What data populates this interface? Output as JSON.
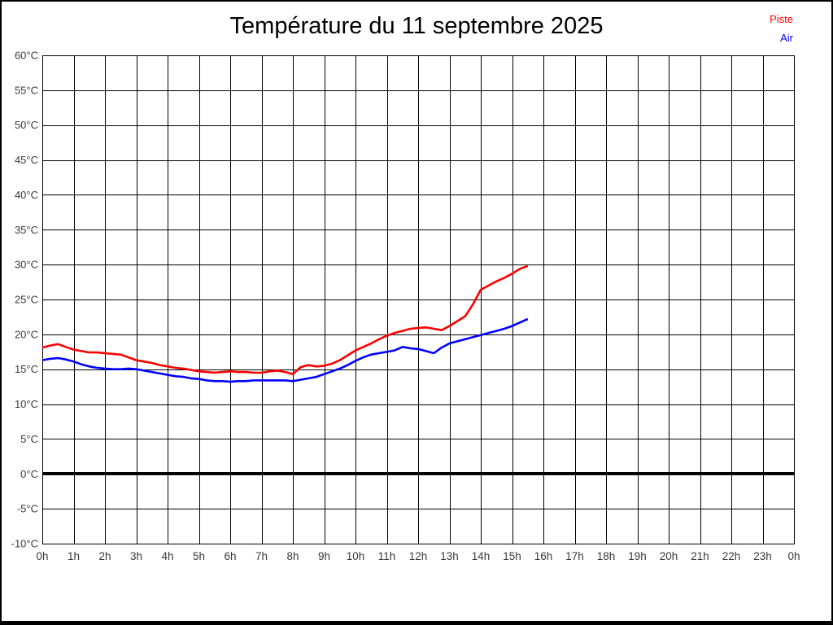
{
  "page": {
    "background": "#ffffff",
    "border_color": "#000000"
  },
  "header": {
    "title": "Température du 11 septembre 2025"
  },
  "legend": {
    "position": "top-right",
    "items": [
      {
        "label": "Piste",
        "color": "#ff0000"
      },
      {
        "label": "Air",
        "color": "#0000ff"
      }
    ]
  },
  "chart_data": {
    "type": "line",
    "title": "Température du 11 septembre 2025",
    "xlabel": "",
    "ylabel": "",
    "grid": true,
    "grid_color": "#000000",
    "legend_position": "top-right",
    "xlim_hours": [
      0,
      24
    ],
    "ylim": [
      -10,
      60
    ],
    "y_tick_step": 5,
    "zero_line_value": 0,
    "zero_line_thickness": 4,
    "y_ticks": [
      60,
      55,
      50,
      45,
      40,
      35,
      30,
      25,
      20,
      15,
      10,
      5,
      0,
      -5,
      -10
    ],
    "y_tick_labels": [
      "60°C",
      "55°C",
      "50°C",
      "45°C",
      "40°C",
      "35°C",
      "30°C",
      "25°C",
      "20°C",
      "15°C",
      "10°C",
      "5°C",
      "0°C",
      "-5°C",
      "-10°C"
    ],
    "x_ticks_hours": [
      0,
      1,
      2,
      3,
      4,
      5,
      6,
      7,
      8,
      9,
      10,
      11,
      12,
      13,
      14,
      15,
      16,
      17,
      18,
      19,
      20,
      21,
      22,
      23,
      24
    ],
    "x_tick_labels": [
      "0h",
      "1h",
      "2h",
      "3h",
      "4h",
      "5h",
      "6h",
      "7h",
      "8h",
      "9h",
      "10h",
      "11h",
      "12h",
      "13h",
      "14h",
      "15h",
      "16h",
      "17h",
      "18h",
      "19h",
      "20h",
      "21h",
      "22h",
      "23h",
      "0h"
    ],
    "x_hours": [
      0,
      0.25,
      0.5,
      0.75,
      1,
      1.25,
      1.5,
      1.75,
      2,
      2.25,
      2.5,
      2.75,
      3,
      3.25,
      3.5,
      3.75,
      4,
      4.25,
      4.5,
      4.75,
      5,
      5.25,
      5.5,
      5.75,
      6,
      6.25,
      6.5,
      6.75,
      7,
      7.25,
      7.5,
      7.75,
      8,
      8.25,
      8.5,
      8.75,
      9,
      9.25,
      9.5,
      9.75,
      10,
      10.25,
      10.5,
      10.75,
      11,
      11.25,
      11.5,
      11.75,
      12,
      12.25,
      12.5,
      12.75,
      13,
      13.25,
      13.5,
      13.75,
      14,
      14.25,
      14.5,
      14.75,
      15,
      15.25,
      15.5
    ],
    "series": [
      {
        "name": "Piste",
        "color": "#ff0000",
        "values": [
          18.1,
          18.4,
          18.6,
          18.2,
          17.8,
          17.6,
          17.4,
          17.4,
          17.3,
          17.2,
          17.1,
          16.7,
          16.3,
          16.1,
          15.9,
          15.6,
          15.4,
          15.2,
          15.1,
          14.9,
          14.7,
          14.6,
          14.5,
          14.6,
          14.7,
          14.6,
          14.6,
          14.5,
          14.5,
          14.7,
          14.8,
          14.6,
          14.3,
          15.3,
          15.6,
          15.4,
          15.5,
          15.8,
          16.3,
          17.0,
          17.7,
          18.2,
          18.7,
          19.3,
          19.8,
          20.2,
          20.5,
          20.8,
          20.9,
          21.0,
          20.8,
          20.6,
          21.2,
          21.9,
          22.6,
          24.3,
          26.4,
          27.0,
          27.6,
          28.1,
          28.7,
          29.4,
          29.8
        ]
      },
      {
        "name": "Air",
        "color": "#0000ff",
        "values": [
          16.3,
          16.5,
          16.6,
          16.4,
          16.1,
          15.7,
          15.4,
          15.2,
          15.1,
          15.0,
          15.0,
          15.1,
          15.0,
          14.8,
          14.6,
          14.4,
          14.2,
          14.0,
          13.9,
          13.7,
          13.6,
          13.4,
          13.3,
          13.3,
          13.2,
          13.3,
          13.3,
          13.4,
          13.4,
          13.4,
          13.4,
          13.4,
          13.3,
          13.5,
          13.7,
          13.9,
          14.3,
          14.7,
          15.1,
          15.6,
          16.2,
          16.7,
          17.1,
          17.3,
          17.5,
          17.7,
          18.2,
          18.0,
          17.9,
          17.6,
          17.3,
          18.1,
          18.7,
          19.0,
          19.3,
          19.6,
          19.9,
          20.2,
          20.5,
          20.8,
          21.2,
          21.7,
          22.2
        ]
      }
    ]
  }
}
